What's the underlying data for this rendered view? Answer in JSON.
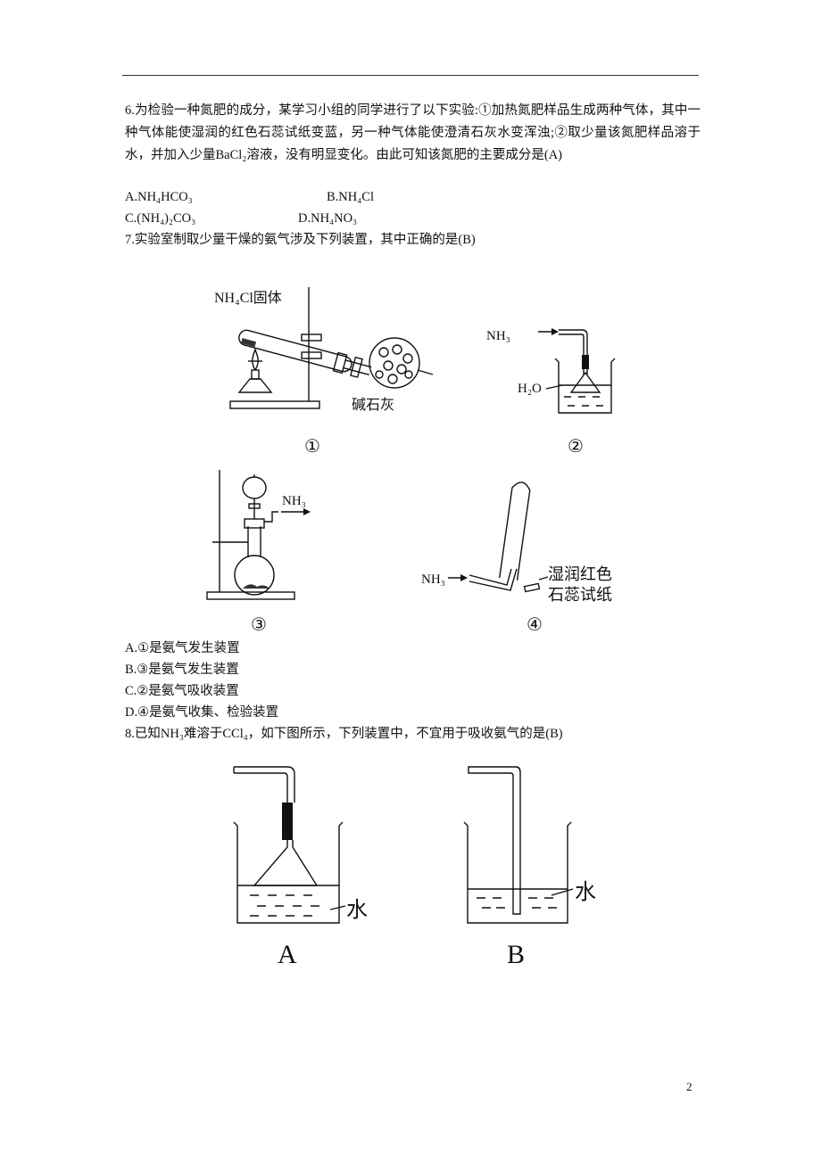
{
  "page_number": "2",
  "questions": [
    {
      "stem": "6.为检验一种氮肥的成分，某学习小组的同学进行了以下实验:①加热氮肥样品生成两种气体，其中一种气体能使湿润的红色石蕊试纸变蓝，另一种气体能使澄清石灰水变浑浊;②取少量该氮肥样品溶于水，并加入少量BaCl₂溶液，没有明显变化。由此可知该氮肥的主要成分是(A)",
      "options": [
        "A.NH₄HCO₃",
        "B.NH₄Cl",
        "C.(NH₄)₂CO₃",
        "D.NH₄NO₃"
      ]
    },
    {
      "stem": "7.实验室制取少量干燥的氨气涉及下列装置，其中正确的是(B)",
      "figures": [
        {
          "label": "①",
          "texts": [
            "NH₄Cl固体",
            "碱石灰"
          ]
        },
        {
          "label": "②",
          "texts": [
            "NH₃",
            "H₂O"
          ]
        },
        {
          "label": "③",
          "texts": [
            "NH₃"
          ]
        },
        {
          "label": "④",
          "texts": [
            "NH₃",
            "湿润红色",
            "石蕊试纸"
          ]
        }
      ],
      "options": [
        "A.①是氨气发生装置",
        "B.③是氨气发生装置",
        "C.②是氨气吸收装置",
        "D.④是氨气收集、检验装置"
      ]
    },
    {
      "stem": "8.已知NH₃难溶于CCl₄，如下图所示，下列装置中，不宜用于吸收氨气的是(B)",
      "figures": [
        {
          "label": "A",
          "texts": [
            "水"
          ]
        },
        {
          "label": "B",
          "texts": [
            "水"
          ]
        }
      ]
    }
  ]
}
